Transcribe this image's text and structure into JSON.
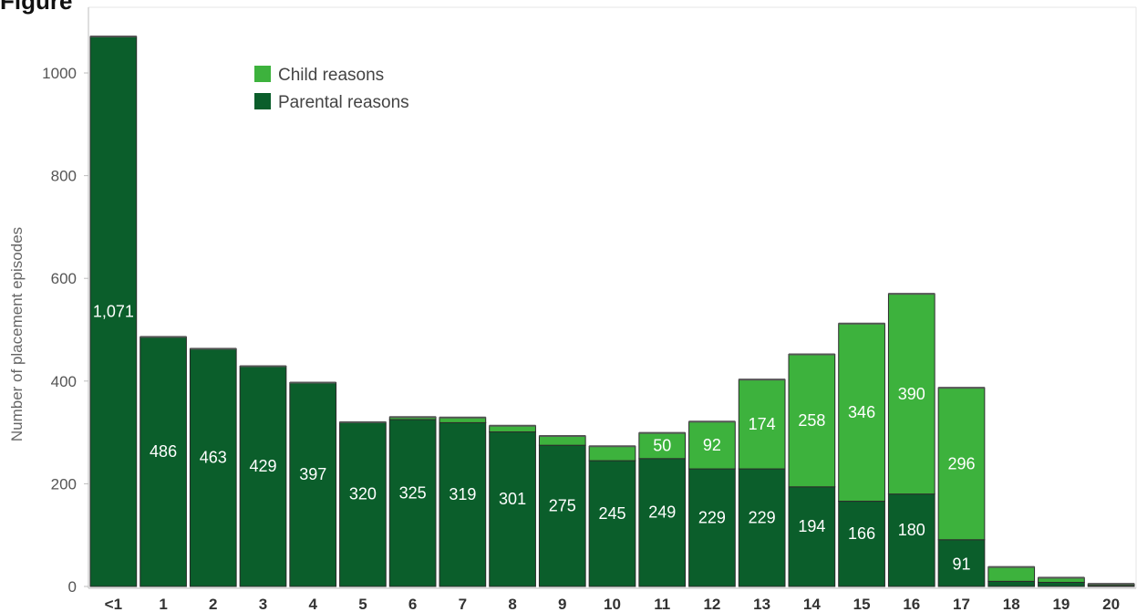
{
  "chart_data": {
    "type": "bar",
    "stacked": true,
    "title_visible_fragment": "Figure",
    "ylabel": "Number of placement episodes",
    "xlabel": "",
    "categories": [
      "<1",
      "1",
      "2",
      "3",
      "4",
      "5",
      "6",
      "7",
      "8",
      "9",
      "10",
      "11",
      "12",
      "13",
      "14",
      "15",
      "16",
      "17",
      "18",
      "19",
      "20"
    ],
    "series": [
      {
        "name": "Parental reasons",
        "color": "#0b5e2b",
        "values": [
          1071,
          486,
          463,
          429,
          397,
          320,
          325,
          319,
          301,
          275,
          245,
          249,
          229,
          229,
          194,
          166,
          180,
          91,
          10,
          8,
          2
        ],
        "labels": [
          "1,071",
          "486",
          "463",
          "429",
          "397",
          "320",
          "325",
          "319",
          "301",
          "275",
          "245",
          "249",
          "229",
          "229",
          "194",
          "166",
          "180",
          "91",
          "",
          "",
          ""
        ]
      },
      {
        "name": "Child reasons",
        "color": "#3db23d",
        "values": [
          0,
          0,
          0,
          0,
          0,
          0,
          5,
          10,
          12,
          18,
          28,
          50,
          92,
          174,
          258,
          346,
          390,
          296,
          28,
          9,
          3
        ],
        "labels": [
          "",
          "",
          "",
          "",
          "",
          "",
          "",
          "",
          "",
          "",
          "",
          "50",
          "92",
          "174",
          "258",
          "346",
          "390",
          "296",
          "",
          "",
          ""
        ]
      }
    ],
    "yticks": [
      {
        "value": 0,
        "label": "0"
      },
      {
        "value": 200,
        "label": "200"
      },
      {
        "value": 400,
        "label": "400"
      },
      {
        "value": 600,
        "label": "600"
      },
      {
        "value": 800,
        "label": "800"
      },
      {
        "value": 1000,
        "label": "1000"
      }
    ],
    "ylim": [
      0,
      1100
    ],
    "grid": false,
    "legend_position": "top-left",
    "legend": [
      {
        "label": "Child reasons",
        "color": "#3db23d"
      },
      {
        "label": "Parental reasons",
        "color": "#0b5e2b"
      }
    ]
  }
}
